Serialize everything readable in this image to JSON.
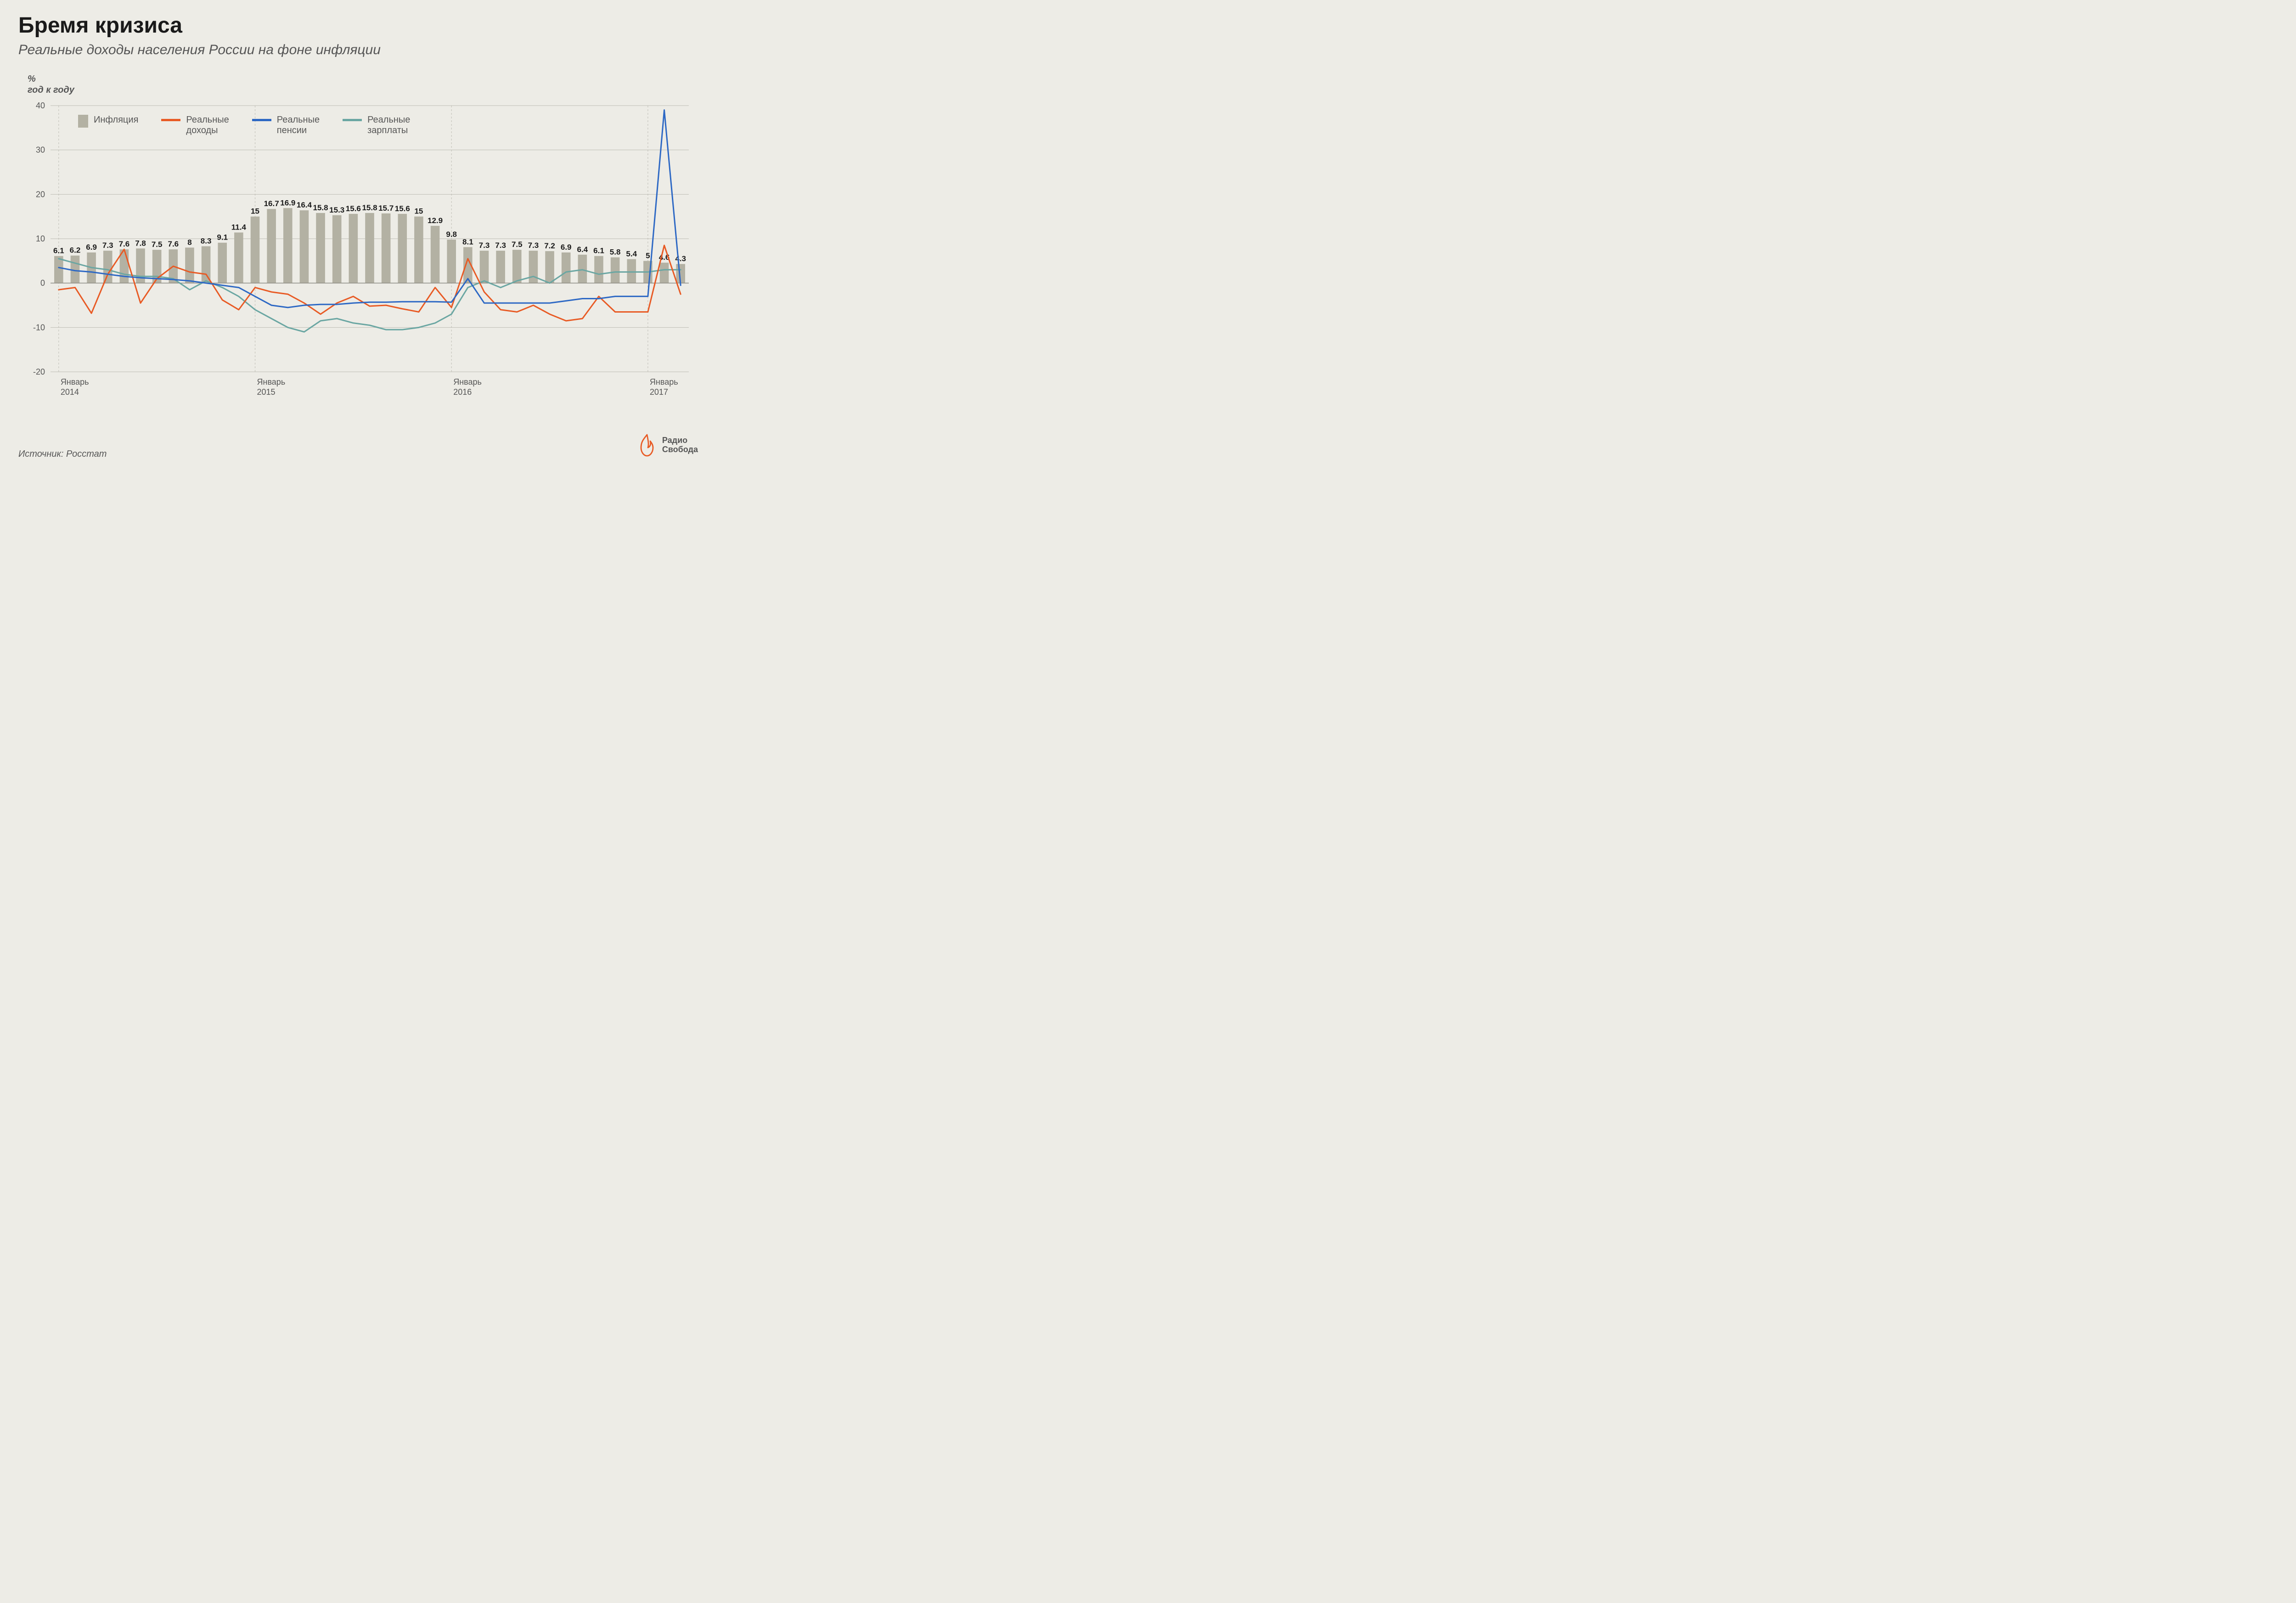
{
  "title": "Бремя кризиса",
  "subtitle": "Реальные доходы населения России на фоне инфляции",
  "y_unit_line1": "%",
  "y_unit_line2": "год к году",
  "source": "Источник: Росстат",
  "logo_line1": "Радио",
  "logo_line2": "Свобода",
  "chart": {
    "type": "bar+line",
    "background": "#edece6",
    "grid_color": "#bdbcb4",
    "axis_color": "#8d8c83",
    "text_color": "#565656",
    "ylim": [
      -20,
      40
    ],
    "yticks": [
      -20,
      -10,
      0,
      10,
      20,
      30,
      40
    ],
    "bar_color": "#b3b1a3",
    "bar_width": 0.55,
    "n_points": 39,
    "x_tick_labels": [
      {
        "idx": 0,
        "line1": "Январь",
        "line2": "2014"
      },
      {
        "idx": 12,
        "line1": "Январь",
        "line2": "2015"
      },
      {
        "idx": 24,
        "line1": "Январь",
        "line2": "2016"
      },
      {
        "idx": 36,
        "line1": "Январь",
        "line2": "2017"
      }
    ],
    "legend": [
      {
        "kind": "bar",
        "label": "Инфляция",
        "color": "#b3b1a3"
      },
      {
        "kind": "line",
        "label": "Реальные\nдоходы",
        "color": "#e85a24"
      },
      {
        "kind": "line",
        "label": "Реальные\nпенсии",
        "color": "#2d68c4"
      },
      {
        "kind": "line",
        "label": "Реальные\nзарплаты",
        "color": "#6aa6a2"
      }
    ],
    "series": {
      "inflation_bars": [
        6.1,
        6.2,
        6.9,
        7.3,
        7.6,
        7.8,
        7.5,
        7.6,
        8,
        8.3,
        9.1,
        11.4,
        15,
        16.7,
        16.9,
        16.4,
        15.8,
        15.3,
        15.6,
        15.8,
        15.7,
        15.6,
        15,
        12.9,
        9.8,
        8.1,
        7.3,
        7.3,
        7.5,
        7.3,
        7.2,
        6.9,
        6.4,
        6.1,
        5.8,
        5.4,
        5,
        4.6,
        4.3
      ],
      "real_income": [
        -1.5,
        -1,
        -6.8,
        2,
        7.6,
        -4.5,
        1,
        3.8,
        2.5,
        2,
        -3.8,
        -6,
        -1,
        -2,
        -2.5,
        -4.5,
        -7,
        -4.5,
        -3,
        -5.2,
        -5,
        -5.8,
        -6.5,
        -1,
        -5.5,
        5.5,
        -2,
        -6,
        -6.5,
        -5,
        -7,
        -8.5,
        -8,
        -3,
        -6.5,
        -6.5,
        -6.5,
        8.5,
        -2.5
      ],
      "real_pensions": [
        3.5,
        2.8,
        2.5,
        2,
        1.5,
        1.2,
        1,
        0.8,
        0.5,
        0,
        -0.5,
        -1,
        -3,
        -5,
        -5.5,
        -5,
        -4.8,
        -4.8,
        -4.5,
        -4.3,
        -4.3,
        -4.2,
        -4.2,
        -4.2,
        -4.3,
        1,
        -4.5,
        -4.5,
        -4.5,
        -4.5,
        -4.5,
        -4,
        -3.5,
        -3.5,
        -3,
        -3,
        -3,
        39,
        -0.5
      ],
      "real_wages": [
        5.5,
        4.5,
        3.5,
        3,
        2,
        1.5,
        1.5,
        1,
        -1.5,
        0.5,
        -1,
        -3,
        -6,
        -8,
        -10,
        -11,
        -8.5,
        -8,
        -9,
        -9.5,
        -10.5,
        -10.5,
        -10,
        -9,
        -7,
        -1,
        0.5,
        -1,
        0.5,
        1.5,
        0,
        2.5,
        3,
        2,
        2.5,
        2.5,
        2.5,
        3,
        3
      ],
      "colors": {
        "real_income": "#e85a24",
        "real_pensions": "#2d68c4",
        "real_wages": "#6aa6a2"
      },
      "line_width": 3
    }
  }
}
